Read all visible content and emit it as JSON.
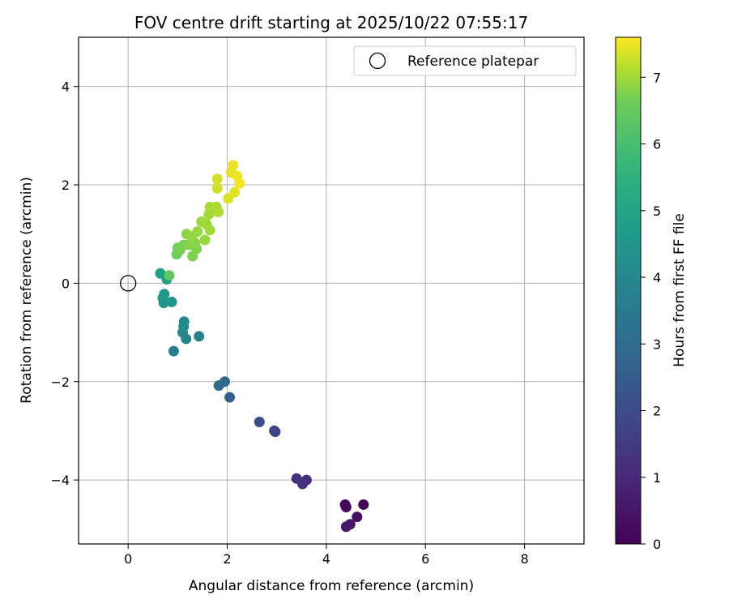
{
  "chart_data": {
    "type": "scatter",
    "title": "FOV centre drift starting at 2025/10/22 07:55:17",
    "xlabel": "Angular distance from reference (arcmin)",
    "ylabel": "Rotation from reference (arcmin)",
    "xlim": [
      -1.0,
      9.2
    ],
    "ylim": [
      -5.3,
      5.0
    ],
    "xticks": [
      0,
      2,
      4,
      6,
      8
    ],
    "yticks": [
      -4,
      -2,
      0,
      2,
      4
    ],
    "xtick_labels": [
      "0",
      "2",
      "4",
      "6",
      "8"
    ],
    "ytick_labels": [
      "−4",
      "−2",
      "0",
      "2",
      "4"
    ],
    "grid": true,
    "legend": {
      "position": "top-right",
      "label": "Reference platepar"
    },
    "reference_point": {
      "x": 0,
      "y": 0
    },
    "colorbar": {
      "label": "Hours from first FF file",
      "min": 0,
      "max": 7.6,
      "ticks": [
        0,
        1,
        2,
        3,
        4,
        5,
        6,
        7
      ],
      "tick_labels": [
        "0",
        "1",
        "2",
        "3",
        "4",
        "5",
        "6",
        "7"
      ],
      "colormap": "viridis"
    },
    "points": [
      {
        "x": 4.75,
        "y": -4.5,
        "c": 0.05
      },
      {
        "x": 4.38,
        "y": -4.5,
        "c": 0.1
      },
      {
        "x": 4.4,
        "y": -4.55,
        "c": 0.2
      },
      {
        "x": 4.62,
        "y": -4.75,
        "c": 0.3
      },
      {
        "x": 4.48,
        "y": -4.9,
        "c": 0.4
      },
      {
        "x": 4.4,
        "y": -4.95,
        "c": 0.45
      },
      {
        "x": 3.6,
        "y": -4.0,
        "c": 1.0
      },
      {
        "x": 3.4,
        "y": -3.97,
        "c": 1.1
      },
      {
        "x": 3.52,
        "y": -4.08,
        "c": 1.15
      },
      {
        "x": 2.95,
        "y": -3.0,
        "c": 1.5
      },
      {
        "x": 2.97,
        "y": -3.02,
        "c": 1.55
      },
      {
        "x": 2.65,
        "y": -2.82,
        "c": 1.8
      },
      {
        "x": 2.05,
        "y": -2.32,
        "c": 2.3
      },
      {
        "x": 1.95,
        "y": -2.0,
        "c": 2.5
      },
      {
        "x": 1.83,
        "y": -2.08,
        "c": 2.6
      },
      {
        "x": 0.92,
        "y": -1.38,
        "c": 3.2
      },
      {
        "x": 1.43,
        "y": -1.08,
        "c": 3.3
      },
      {
        "x": 1.17,
        "y": -1.13,
        "c": 3.4
      },
      {
        "x": 1.1,
        "y": -1.0,
        "c": 3.5
      },
      {
        "x": 1.12,
        "y": -0.88,
        "c": 3.55
      },
      {
        "x": 1.13,
        "y": -0.78,
        "c": 3.6
      },
      {
        "x": 0.88,
        "y": -0.38,
        "c": 3.8
      },
      {
        "x": 0.72,
        "y": -0.4,
        "c": 3.9
      },
      {
        "x": 0.7,
        "y": -0.3,
        "c": 4.0
      },
      {
        "x": 0.73,
        "y": -0.22,
        "c": 4.05
      },
      {
        "x": 0.78,
        "y": 0.08,
        "c": 4.2
      },
      {
        "x": 0.65,
        "y": 0.2,
        "c": 4.3
      },
      {
        "x": 0.83,
        "y": 0.16,
        "c": 5.7
      },
      {
        "x": 0.98,
        "y": 0.59,
        "c": 5.9
      },
      {
        "x": 1.0,
        "y": 0.72,
        "c": 5.95
      },
      {
        "x": 1.05,
        "y": 0.68,
        "c": 6.0
      },
      {
        "x": 1.12,
        "y": 0.78,
        "c": 6.05
      },
      {
        "x": 1.3,
        "y": 0.55,
        "c": 6.1
      },
      {
        "x": 1.38,
        "y": 0.7,
        "c": 6.15
      },
      {
        "x": 1.22,
        "y": 0.78,
        "c": 6.2
      },
      {
        "x": 1.35,
        "y": 0.82,
        "c": 6.25
      },
      {
        "x": 1.18,
        "y": 1.0,
        "c": 6.3
      },
      {
        "x": 1.28,
        "y": 0.95,
        "c": 6.35
      },
      {
        "x": 1.4,
        "y": 1.05,
        "c": 6.4
      },
      {
        "x": 1.55,
        "y": 0.88,
        "c": 6.42
      },
      {
        "x": 1.48,
        "y": 1.25,
        "c": 6.45
      },
      {
        "x": 1.58,
        "y": 1.2,
        "c": 6.48
      },
      {
        "x": 1.65,
        "y": 1.08,
        "c": 6.52
      },
      {
        "x": 1.63,
        "y": 1.4,
        "c": 6.55
      },
      {
        "x": 1.7,
        "y": 1.52,
        "c": 6.58
      },
      {
        "x": 1.65,
        "y": 1.55,
        "c": 6.6
      },
      {
        "x": 1.78,
        "y": 1.55,
        "c": 6.62
      },
      {
        "x": 1.82,
        "y": 1.45,
        "c": 6.65
      },
      {
        "x": 1.8,
        "y": 1.93,
        "c": 7.05
      },
      {
        "x": 1.8,
        "y": 2.12,
        "c": 7.1
      },
      {
        "x": 2.02,
        "y": 1.72,
        "c": 7.2
      },
      {
        "x": 2.15,
        "y": 1.85,
        "c": 7.25
      },
      {
        "x": 2.08,
        "y": 2.25,
        "c": 7.3
      },
      {
        "x": 2.12,
        "y": 2.4,
        "c": 7.35
      },
      {
        "x": 2.2,
        "y": 2.18,
        "c": 7.4
      },
      {
        "x": 2.25,
        "y": 2.03,
        "c": 7.5
      }
    ]
  }
}
